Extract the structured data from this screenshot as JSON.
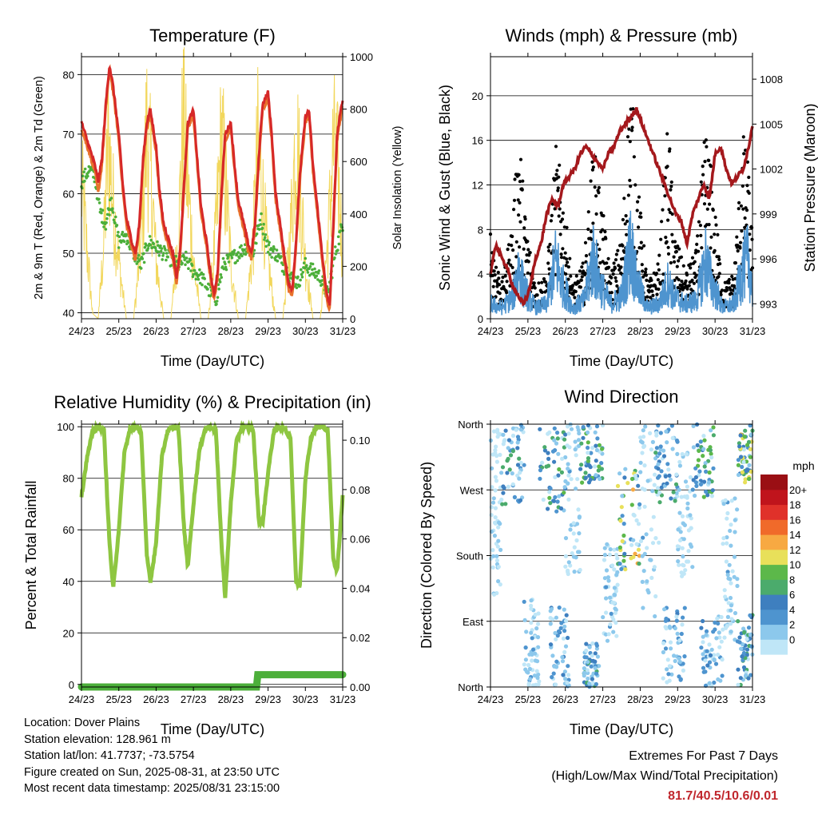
{
  "colors": {
    "temp_2m": "#e8722c",
    "temp_9m": "#d62828",
    "dewpoint": "#4caf3a",
    "solar": "#f2d75c",
    "wind": "#4e94cf",
    "gust": "#000000",
    "pressure": "#a4181c",
    "rh": "#8ec641",
    "rain": "#4caf3a"
  },
  "panels": {
    "temperature": {
      "title": "Temperature (F)",
      "ylabel_left": "2m & 9m T (Red, Orange) & 2m Td (Green)",
      "ylabel_right": "Solar Insolation (Yellow)",
      "xlabel": "Time (Day/UTC)",
      "yticks_left": [
        "40",
        "50",
        "60",
        "70",
        "80"
      ],
      "yticks_right": [
        "0",
        "200",
        "400",
        "600",
        "800",
        "1000"
      ],
      "xticks": [
        "24/23",
        "25/23",
        "26/23",
        "27/23",
        "28/23",
        "29/23",
        "30/23",
        "31/23"
      ]
    },
    "winds": {
      "title": "Winds (mph) & Pressure (mb)",
      "ylabel_left": "Sonic Wind & Gust (Blue, Black)",
      "ylabel_right": "Station Pressure (Maroon)",
      "xlabel": "Time (Day/UTC)",
      "yticks_left": [
        "0",
        "4",
        "8",
        "12",
        "16",
        "20"
      ],
      "yticks_right": [
        "993",
        "996",
        "999",
        "1002",
        "1005",
        "1008"
      ],
      "xticks": [
        "24/23",
        "25/23",
        "26/23",
        "27/23",
        "28/23",
        "29/23",
        "30/23",
        "31/23"
      ]
    },
    "humidity": {
      "title": "Relative Humidity (%) & Precipitation (in)",
      "ylabel_left": "Percent & Total Rainfall",
      "xlabel": "Time (Day/UTC)",
      "yticks_left": [
        "0",
        "20",
        "40",
        "60",
        "80",
        "100"
      ],
      "yticks_right": [
        "0.00",
        "0.02",
        "0.04",
        "0.06",
        "0.08",
        "0.10"
      ],
      "xticks": [
        "24/23",
        "25/23",
        "26/23",
        "27/23",
        "28/23",
        "29/23",
        "30/23",
        "31/23"
      ]
    },
    "direction": {
      "title": "Wind Direction",
      "ylabel_left": "Direction (Colored By Speed)",
      "xlabel": "Time (Day/UTC)",
      "yticks_left": [
        "North",
        "East",
        "South",
        "West",
        "North"
      ],
      "xticks": [
        "24/23",
        "25/23",
        "26/23",
        "27/23",
        "28/23",
        "29/23",
        "30/23",
        "31/23"
      ],
      "colorbar_title": "mph",
      "colorbar_labels": [
        "0",
        "2",
        "4",
        "6",
        "8",
        "10",
        "12",
        "14",
        "16",
        "18",
        "20+"
      ],
      "colorbar_colors": [
        "#bfe6f7",
        "#8cc8ec",
        "#4e94cf",
        "#3e7fbf",
        "#4bab6c",
        "#5cb84a",
        "#e8e05a",
        "#f7a942",
        "#f06a2a",
        "#e0312a",
        "#c0141c",
        "#9a0f14"
      ]
    }
  },
  "chart_data": [
    {
      "type": "line",
      "title": "Temperature (F)",
      "xlabel": "Time (Day/UTC)",
      "ylabel": "2m & 9m T (Red, Orange) & 2m Td (Green)",
      "ylabel_right": "Solar Insolation (Yellow)",
      "x_unit": "days since 24/23",
      "ylim": [
        39,
        83
      ],
      "ylim_right": [
        0,
        1000
      ],
      "grid": true,
      "series": [
        {
          "name": "9m T (Red)",
          "x": [
            0,
            0.2,
            0.35,
            0.45,
            0.55,
            0.65,
            0.75,
            0.85,
            1.0,
            1.1,
            1.2,
            1.35,
            1.45,
            1.55,
            1.65,
            1.75,
            1.85,
            2.0,
            2.1,
            2.2,
            2.35,
            2.45,
            2.55,
            2.65,
            2.75,
            2.85,
            3.0,
            3.1,
            3.2,
            3.35,
            3.45,
            3.55,
            3.65,
            3.75,
            3.85,
            4.0,
            4.1,
            4.2,
            4.35,
            4.45,
            4.55,
            4.65,
            4.75,
            4.85,
            5.0,
            5.1,
            5.2,
            5.35,
            5.45,
            5.55,
            5.65,
            5.75,
            5.85,
            6.0,
            6.1,
            6.2,
            6.35,
            6.45,
            6.55,
            6.65,
            6.75,
            6.85,
            7.0
          ],
          "y": [
            72,
            68,
            65,
            62,
            66,
            75,
            81.7,
            78,
            70,
            62,
            56,
            52,
            50,
            55,
            66,
            72,
            74,
            68,
            60,
            55,
            52,
            50,
            46,
            51,
            62,
            72,
            74,
            66,
            58,
            52,
            47,
            43,
            47,
            60,
            70,
            72,
            65,
            59,
            55,
            52,
            50,
            55,
            66,
            75,
            77,
            70,
            60,
            54,
            49,
            45,
            44,
            52,
            63,
            73,
            74,
            65,
            56,
            50,
            44,
            41,
            55,
            70,
            76
          ]
        },
        {
          "name": "2m T (Orange)",
          "x": [
            0,
            0.2,
            0.35,
            0.45,
            0.55,
            0.65,
            0.75,
            0.85,
            1.0,
            1.1,
            1.2,
            1.35,
            1.45,
            1.55,
            1.65,
            1.75,
            1.85,
            2.0,
            2.1,
            2.2,
            2.35,
            2.45,
            2.55,
            2.65,
            2.75,
            2.85,
            3.0,
            3.1,
            3.2,
            3.35,
            3.45,
            3.55,
            3.65,
            3.75,
            3.85,
            4.0,
            4.1,
            4.2,
            4.35,
            4.45,
            4.55,
            4.65,
            4.75,
            4.85,
            5.0,
            5.1,
            5.2,
            5.35,
            5.45,
            5.55,
            5.65,
            5.75,
            5.85,
            6.0,
            6.1,
            6.2,
            6.35,
            6.45,
            6.55,
            6.65,
            6.75,
            6.85,
            7.0
          ],
          "y": [
            71,
            67,
            64,
            60,
            65,
            74,
            81,
            77,
            69,
            61,
            55,
            51,
            49,
            54,
            65,
            71,
            73,
            67,
            59,
            54,
            51,
            49,
            45,
            50,
            61,
            71,
            73,
            65,
            57,
            51,
            46,
            42,
            46,
            59,
            69,
            71,
            64,
            58,
            54,
            51,
            49,
            54,
            65,
            74,
            76,
            69,
            59,
            53,
            48,
            44,
            43,
            51,
            62,
            72,
            73,
            64,
            55,
            49,
            43,
            40.5,
            54,
            69,
            75
          ]
        },
        {
          "name": "2m Td (Green)",
          "x": [
            0,
            0.2,
            0.35,
            0.5,
            0.65,
            0.8,
            1.0,
            1.2,
            1.4,
            1.6,
            1.8,
            2.0,
            2.2,
            2.4,
            2.6,
            2.8,
            3.0,
            3.2,
            3.4,
            3.6,
            3.8,
            4.0,
            4.2,
            4.4,
            4.6,
            4.8,
            5.0,
            5.2,
            5.4,
            5.6,
            5.8,
            6.0,
            6.2,
            6.4,
            6.6,
            6.8,
            7.0
          ],
          "y": [
            62,
            64,
            63,
            57,
            55,
            59,
            52,
            53,
            50,
            48,
            52,
            51,
            50,
            49,
            48,
            49,
            47,
            46,
            44,
            42,
            48,
            49,
            50,
            51,
            50,
            56,
            51,
            50,
            48,
            46,
            45,
            48,
            47,
            46,
            43,
            50,
            55
          ]
        },
        {
          "name": "Solar Insolation (Yellow)",
          "axis": "right",
          "x": [
            0,
            0.3,
            0.45,
            0.6,
            0.72,
            0.85,
            1.0,
            1.2,
            1.4,
            1.6,
            1.75,
            1.88,
            2.0,
            2.2,
            2.4,
            2.6,
            2.72,
            2.85,
            3.0,
            3.2,
            3.4,
            3.6,
            3.75,
            3.88,
            4.0,
            4.2,
            4.4,
            4.6,
            4.72,
            4.85,
            5.0,
            5.2,
            5.4,
            5.6,
            5.75,
            5.88,
            6.0,
            6.2,
            6.4,
            6.6,
            6.75,
            6.88,
            7.0
          ],
          "y": [
            700,
            20,
            0,
            400,
            950,
            600,
            300,
            0,
            0,
            400,
            1000,
            700,
            300,
            0,
            0,
            450,
            1040,
            700,
            300,
            0,
            0,
            450,
            950,
            650,
            300,
            0,
            0,
            400,
            900,
            650,
            300,
            0,
            0,
            450,
            1000,
            650,
            300,
            0,
            0,
            400,
            900,
            750,
            320
          ]
        }
      ]
    },
    {
      "type": "line",
      "title": "Winds (mph) & Pressure (mb)",
      "xlabel": "Time (Day/UTC)",
      "ylabel": "Sonic Wind & Gust (Blue, Black)",
      "ylabel_right": "Station Pressure (Maroon)",
      "x_unit": "days since 24/23",
      "ylim": [
        0,
        23.5
      ],
      "ylim_right": [
        992,
        1009.5
      ],
      "grid": true,
      "series": [
        {
          "name": "Sonic Wind (Blue)",
          "x": [
            0,
            0.3,
            0.6,
            0.75,
            0.9,
            1.2,
            1.5,
            1.75,
            1.9,
            2.2,
            2.5,
            2.75,
            2.9,
            3.2,
            3.5,
            3.75,
            3.9,
            4.2,
            4.5,
            4.75,
            4.9,
            5.2,
            5.5,
            5.75,
            5.9,
            6.2,
            6.5,
            6.75,
            6.9,
            7.0
          ],
          "y": [
            2,
            1.5,
            3,
            7,
            4,
            1.5,
            2,
            8,
            5,
            1.5,
            2.5,
            8.5,
            5,
            2,
            3,
            10,
            5,
            1.5,
            2,
            5,
            3,
            2,
            2.5,
            8,
            5,
            1.5,
            2,
            7,
            8,
            4
          ]
        },
        {
          "name": "Gust (Black)",
          "x": [
            0,
            0.3,
            0.6,
            0.75,
            0.9,
            1.2,
            1.5,
            1.75,
            1.9,
            2.2,
            2.5,
            2.75,
            2.9,
            3.2,
            3.5,
            3.75,
            3.9,
            4.2,
            4.5,
            4.75,
            4.9,
            5.2,
            5.5,
            5.75,
            5.9,
            6.2,
            6.5,
            6.75,
            6.9,
            7.0
          ],
          "y": [
            8,
            3,
            9,
            18,
            10,
            3,
            4,
            15,
            12,
            3,
            5,
            15,
            12,
            4,
            7,
            21.5,
            13,
            3,
            5,
            17.8,
            8,
            4,
            6,
            17,
            13,
            3,
            4,
            16,
            13,
            7
          ]
        },
        {
          "name": "Station Pressure (Maroon)",
          "axis": "right",
          "x": [
            0,
            0.15,
            0.3,
            0.45,
            0.6,
            0.75,
            0.9,
            1.05,
            1.2,
            1.35,
            1.5,
            1.65,
            1.8,
            1.95,
            2.1,
            2.25,
            2.4,
            2.55,
            2.7,
            2.85,
            3.0,
            3.15,
            3.3,
            3.45,
            3.6,
            3.75,
            3.9,
            4.05,
            4.2,
            4.35,
            4.5,
            4.65,
            4.8,
            4.95,
            5.1,
            5.25,
            5.4,
            5.55,
            5.7,
            5.85,
            6.0,
            6.15,
            6.3,
            6.45,
            6.6,
            6.75,
            6.9,
            7.0
          ],
          "y": [
            995,
            997,
            996,
            995.5,
            994,
            993.5,
            993,
            994,
            996,
            997,
            999,
            1000,
            999.5,
            1001,
            1001.5,
            1002,
            1003,
            1003.5,
            1003,
            1002.5,
            1002,
            1003,
            1003.5,
            1004.5,
            1005,
            1005.5,
            1006,
            1005,
            1004,
            1003,
            1002,
            1001,
            1000,
            999,
            998.5,
            997,
            999,
            1000,
            1001,
            1000,
            1003,
            1003.5,
            1002,
            1001,
            1001.5,
            1002,
            1003.5,
            1005
          ]
        }
      ]
    },
    {
      "type": "line",
      "title": "Relative Humidity (%) & Precipitation (in)",
      "xlabel": "Time (Day/UTC)",
      "ylabel": "Percent & Total Rainfall",
      "x_unit": "days since 24/23",
      "ylim": [
        -1,
        101
      ],
      "ylim_right": [
        0,
        0.1
      ],
      "grid": true,
      "series": [
        {
          "name": "Relative Humidity",
          "x": [
            0,
            0.15,
            0.3,
            0.45,
            0.6,
            0.75,
            0.85,
            1.0,
            1.15,
            1.3,
            1.45,
            1.6,
            1.75,
            1.85,
            2.0,
            2.15,
            2.3,
            2.45,
            2.6,
            2.75,
            2.85,
            3.0,
            3.15,
            3.3,
            3.45,
            3.6,
            3.75,
            3.85,
            4.0,
            4.15,
            4.3,
            4.45,
            4.6,
            4.75,
            4.85,
            5.0,
            5.15,
            5.3,
            5.45,
            5.6,
            5.75,
            5.85,
            6.0,
            6.15,
            6.3,
            6.45,
            6.6,
            6.75,
            6.85,
            7.0
          ],
          "y": [
            73,
            88,
            98,
            100,
            99,
            55,
            37,
            60,
            90,
            99,
            100,
            98,
            50,
            40,
            55,
            88,
            98,
            100,
            99,
            60,
            46,
            70,
            90,
            99,
            100,
            99,
            55,
            34,
            70,
            94,
            100,
            100,
            99,
            64,
            62,
            82,
            98,
            100,
            99,
            96,
            40,
            38,
            80,
            96,
            100,
            100,
            99,
            48,
            44,
            73
          ]
        },
        {
          "name": "Total Rainfall",
          "axis": "right",
          "x": [
            0,
            1,
            2,
            3,
            4,
            4.7,
            4.72,
            5,
            6,
            7
          ],
          "y": [
            0,
            0,
            0,
            0,
            0,
            0,
            0.005,
            0.005,
            0.005,
            0.005
          ]
        }
      ]
    },
    {
      "type": "scatter",
      "title": "Wind Direction",
      "xlabel": "Time (Day/UTC)",
      "ylabel": "Direction (Colored By Speed)",
      "x_unit": "days since 24/23",
      "ylim": [
        0,
        360
      ],
      "ylim_labels": {
        "0": "North",
        "90": "East",
        "180": "South",
        "270": "West",
        "360": "North"
      },
      "color_scale": "mph",
      "points_summary": [
        {
          "x": 0.6,
          "dir": 275,
          "speed": 6
        },
        {
          "x": 0.75,
          "dir": 300,
          "speed": 8
        },
        {
          "x": 1.05,
          "dir": 90,
          "speed": 2
        },
        {
          "x": 1.7,
          "dir": 300,
          "speed": 6
        },
        {
          "x": 1.8,
          "dir": 100,
          "speed": 4
        },
        {
          "x": 2.6,
          "dir": 320,
          "speed": 8
        },
        {
          "x": 2.7,
          "dir": 20,
          "speed": 6
        },
        {
          "x": 3.6,
          "dir": 230,
          "speed": 10
        },
        {
          "x": 3.65,
          "dir": 240,
          "speed": 8
        },
        {
          "x": 4.65,
          "dir": 330,
          "speed": 6
        },
        {
          "x": 4.95,
          "dir": 10,
          "speed": 4
        },
        {
          "x": 5.6,
          "dir": 310,
          "speed": 8
        },
        {
          "x": 5.65,
          "dir": 340,
          "speed": 8
        },
        {
          "x": 6.6,
          "dir": 40,
          "speed": 4
        },
        {
          "x": 6.75,
          "dir": 340,
          "speed": 10
        }
      ]
    }
  ],
  "info": {
    "location": "Location: Dover Plains",
    "elevation": "Station elevation: 128.961 m",
    "latlon": "Station lat/lon: 41.7737; -73.5754",
    "created": "Figure created on Sun, 2025-08-31, at 23:50 UTC",
    "recent": "Most recent data timestamp: 2025/08/31 23:15:00"
  },
  "extremes": {
    "title": "Extremes For Past 7 Days",
    "subtitle": "(High/Low/Max Wind/Total Precipitation)",
    "values": "81.7/40.5/10.6/0.01"
  }
}
